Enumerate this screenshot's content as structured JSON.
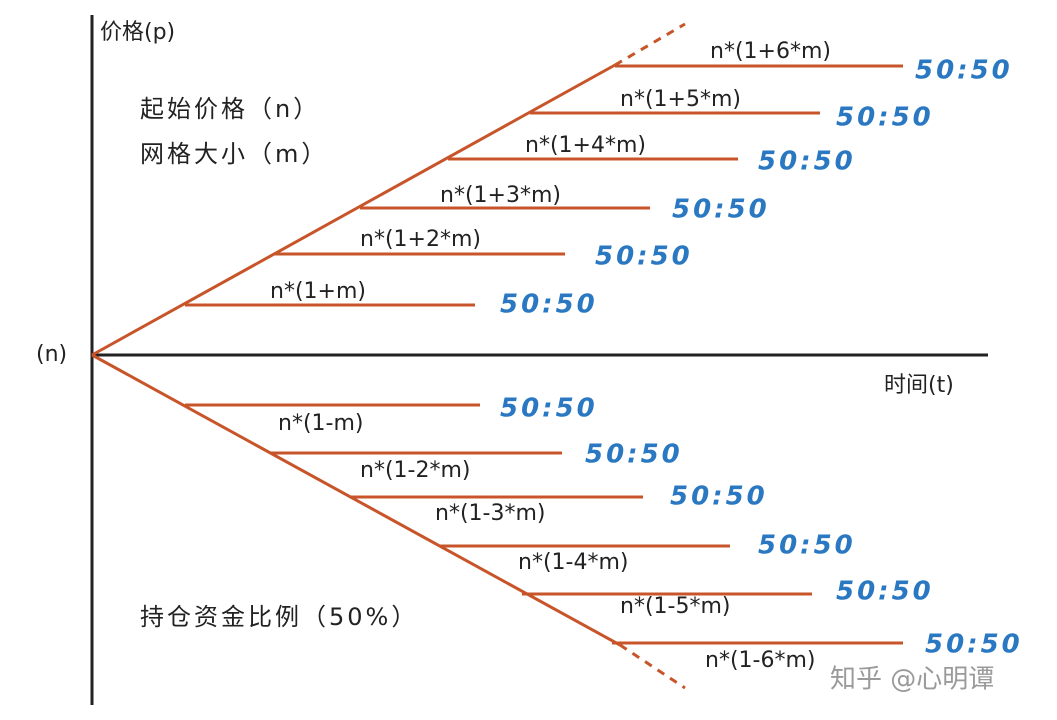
{
  "axes": {
    "y_label": "价格(p)",
    "origin_label": "(n)",
    "x_label": "时间(t)"
  },
  "notes": {
    "start_price": "起始价格（n）",
    "grid_size": "网格大小（m）",
    "position_ratio": "持仓资金比例（50%）"
  },
  "upper_levels": [
    {
      "label": "n*(1+m)",
      "ratio": "50:50"
    },
    {
      "label": "n*(1+2*m)",
      "ratio": "50:50"
    },
    {
      "label": "n*(1+3*m)",
      "ratio": "50:50"
    },
    {
      "label": "n*(1+4*m)",
      "ratio": "50:50"
    },
    {
      "label": "n*(1+5*m)",
      "ratio": "50:50"
    },
    {
      "label": "n*(1+6*m)",
      "ratio": "50:50"
    }
  ],
  "lower_levels": [
    {
      "label": "n*(1-m)",
      "ratio": "50:50"
    },
    {
      "label": "n*(1-2*m)",
      "ratio": "50:50"
    },
    {
      "label": "n*(1-3*m)",
      "ratio": "50:50"
    },
    {
      "label": "n*(1-4*m)",
      "ratio": "50:50"
    },
    {
      "label": "n*(1-5*m)",
      "ratio": "50:50"
    },
    {
      "label": "n*(1-6*m)",
      "ratio": "50:50"
    }
  ],
  "watermark": "知乎 @心明谭"
}
